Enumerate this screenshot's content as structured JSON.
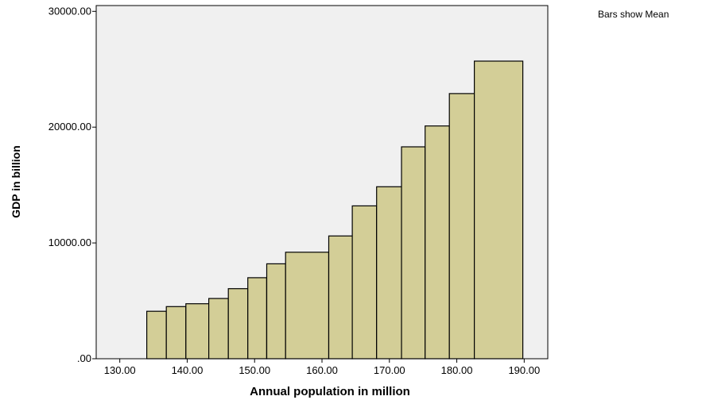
{
  "chart_data": {
    "type": "bar",
    "note": "Bars show Mean",
    "xlabel": "Annual population in million",
    "ylabel": "GDP in billion",
    "xlim": [
      126.5,
      193.5
    ],
    "ylim": [
      0,
      30500
    ],
    "x_ticks": [
      {
        "value": 130,
        "label": "130.00"
      },
      {
        "value": 140,
        "label": "140.00"
      },
      {
        "value": 150,
        "label": "150.00"
      },
      {
        "value": 160,
        "label": "160.00"
      },
      {
        "value": 170,
        "label": "170.00"
      },
      {
        "value": 180,
        "label": "180.00"
      },
      {
        "value": 190,
        "label": "190.00"
      }
    ],
    "y_ticks": [
      {
        "value": 0,
        "label": ".00"
      },
      {
        "value": 10000,
        "label": "10000.00"
      },
      {
        "value": 20000,
        "label": "20000.00"
      },
      {
        "value": 30000,
        "label": "30000.00"
      }
    ],
    "bars": [
      {
        "x0": 134.0,
        "x1": 136.9,
        "value": 4100
      },
      {
        "x0": 136.9,
        "x1": 139.8,
        "value": 4500
      },
      {
        "x0": 139.8,
        "x1": 143.2,
        "value": 4750
      },
      {
        "x0": 143.2,
        "x1": 146.1,
        "value": 5200
      },
      {
        "x0": 146.1,
        "x1": 149.0,
        "value": 6050
      },
      {
        "x0": 149.0,
        "x1": 151.8,
        "value": 7000
      },
      {
        "x0": 151.8,
        "x1": 154.6,
        "value": 8200
      },
      {
        "x0": 154.6,
        "x1": 161.0,
        "value": 9200
      },
      {
        "x0": 161.0,
        "x1": 164.5,
        "value": 10600
      },
      {
        "x0": 164.5,
        "x1": 168.1,
        "value": 13200
      },
      {
        "x0": 168.1,
        "x1": 171.8,
        "value": 14850
      },
      {
        "x0": 171.8,
        "x1": 175.3,
        "value": 18300
      },
      {
        "x0": 175.3,
        "x1": 178.9,
        "value": 20100
      },
      {
        "x0": 178.9,
        "x1": 182.6,
        "value": 22900
      },
      {
        "x0": 182.6,
        "x1": 189.8,
        "value": 25700
      }
    ],
    "grid": false,
    "colors": {
      "plot_background": "#f0f0f0",
      "bar_fill": "#d3ce97",
      "bar_stroke": "#000000"
    }
  }
}
